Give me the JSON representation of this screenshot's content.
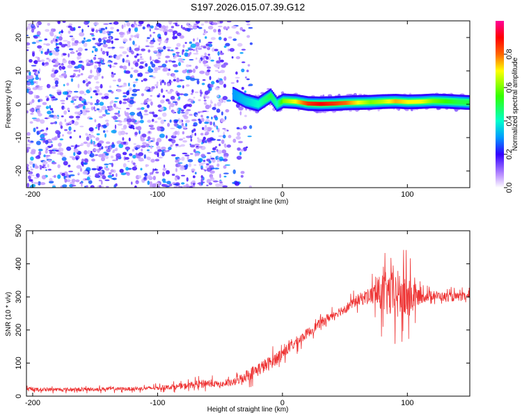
{
  "figure_title": "S197.2026.015.07.39.G12",
  "chart_data": [
    {
      "type": "heatmap",
      "title": "S197.2026.015.07.39.G12",
      "xlabel": "Height of straight line (km)",
      "ylabel": "Frequency (Hz)",
      "xlim": [
        -205,
        150
      ],
      "ylim": [
        -25,
        25
      ],
      "xticks": [
        -200,
        -100,
        0,
        100
      ],
      "xtick_labels": [
        "-200",
        "-100",
        "0",
        "100"
      ],
      "yticks": [
        -20,
        -10,
        0,
        10,
        20
      ],
      "ytick_labels": [
        "-20",
        "-10",
        "0",
        "10",
        "20"
      ],
      "colorbar": {
        "label": "Normalized spectral amplitude",
        "range": [
          0,
          1
        ],
        "ticks": [
          0.0,
          0.2,
          0.4,
          0.6,
          0.8
        ],
        "tick_labels": [
          "0.0",
          "0.2",
          "0.4",
          "0.6",
          "0.8"
        ]
      },
      "noise_region_x": [
        -205,
        -45
      ],
      "transition_region_x": [
        -45,
        -25
      ],
      "signal_ridge": {
        "description_values": "frequency ridge near 0-1 Hz for heights above about -30 km",
        "x": [
          -40,
          -30,
          -20,
          -10,
          -5,
          0,
          10,
          20,
          30,
          40,
          50,
          60,
          70,
          80,
          90,
          100,
          110,
          120,
          130,
          140,
          150
        ],
        "freq": [
          3,
          1,
          0,
          2.5,
          0,
          1,
          0.8,
          0.2,
          0.1,
          0.2,
          0.4,
          0.5,
          0.6,
          0.8,
          0.9,
          0.7,
          0.8,
          1.0,
          0.9,
          0.7,
          0.5
        ],
        "amplitude": [
          0.3,
          0.35,
          0.4,
          0.5,
          0.4,
          0.6,
          0.7,
          0.85,
          0.9,
          0.85,
          0.8,
          0.7,
          0.6,
          0.65,
          0.75,
          0.7,
          0.7,
          0.6,
          0.55,
          0.5,
          0.5
        ]
      }
    },
    {
      "type": "line",
      "xlabel": "Height of straight line (km)",
      "ylabel": "SNR (10 * v/v)",
      "xlim": [
        -205,
        150
      ],
      "ylim": [
        0,
        500
      ],
      "xticks": [
        -200,
        -100,
        0,
        100
      ],
      "xtick_labels": [
        "-200",
        "-100",
        "0",
        "100"
      ],
      "yticks": [
        0,
        100,
        200,
        300,
        400,
        500
      ],
      "ytick_labels": [
        "0",
        "100",
        "200",
        "300",
        "400",
        "500"
      ],
      "color": "#ee3333",
      "series": [
        {
          "name": "SNR",
          "x": [
            -205,
            -180,
            -160,
            -140,
            -120,
            -100,
            -80,
            -60,
            -50,
            -40,
            -30,
            -20,
            -10,
            0,
            10,
            20,
            30,
            40,
            50,
            60,
            70,
            80,
            90,
            100,
            110,
            120,
            130,
            140,
            150
          ],
          "values": [
            20,
            20,
            20,
            22,
            22,
            25,
            30,
            40,
            35,
            40,
            60,
            80,
            100,
            130,
            160,
            190,
            220,
            245,
            265,
            290,
            305,
            310,
            305,
            300,
            300,
            305,
            300,
            300,
            300
          ],
          "noise_amplitude": [
            8,
            8,
            8,
            8,
            8,
            9,
            12,
            18,
            12,
            15,
            25,
            30,
            30,
            25,
            25,
            20,
            20,
            20,
            20,
            25,
            35,
            90,
            110,
            110,
            30,
            20,
            20,
            18,
            18
          ]
        }
      ]
    }
  ]
}
